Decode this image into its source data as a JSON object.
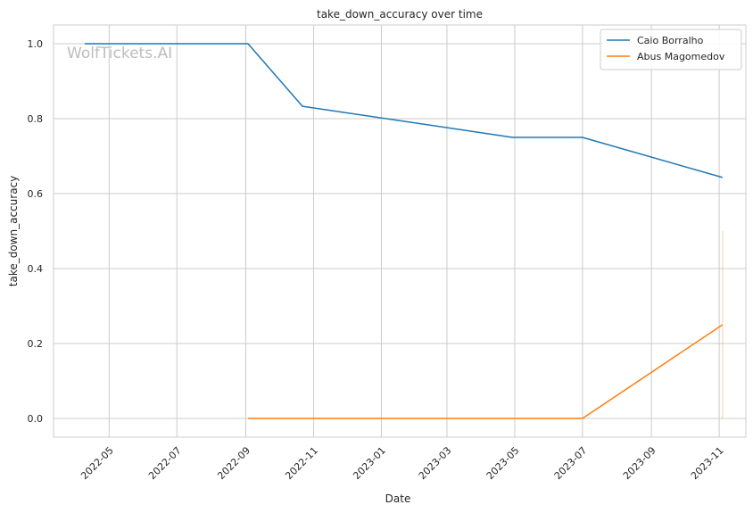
{
  "chart_data": {
    "type": "line",
    "title": "take_down_accuracy over time",
    "xlabel": "Date",
    "ylabel": "take_down_accuracy",
    "watermark": "WolfTickets.AI",
    "x_tick_labels": [
      "2022-05",
      "2022-07",
      "2022-09",
      "2022-11",
      "2023-01",
      "2023-03",
      "2023-05",
      "2023-07",
      "2023-09",
      "2023-11"
    ],
    "x_ticks": [
      "2022-05-01",
      "2022-07-01",
      "2022-09-01",
      "2022-11-01",
      "2023-01-01",
      "2023-03-01",
      "2023-05-01",
      "2023-07-01",
      "2023-09-01",
      "2023-11-01"
    ],
    "y_ticks": [
      0.0,
      0.2,
      0.4,
      0.6,
      0.8,
      1.0
    ],
    "y_tick_labels": [
      "0.0",
      "0.2",
      "0.4",
      "0.6",
      "0.8",
      "1.0"
    ],
    "xlim": [
      "2022-03-12",
      "2023-11-25"
    ],
    "ylim": [
      -0.05,
      1.05
    ],
    "grid": true,
    "legend_position": "top-right",
    "series": [
      {
        "name": "Caio Borralho",
        "color": "#1f77b4",
        "x": [
          "2022-04-09",
          "2022-09-03",
          "2022-10-22",
          "2023-04-29",
          "2023-07-01",
          "2023-11-04"
        ],
        "y": [
          1.0,
          1.0,
          0.833,
          0.75,
          0.75,
          0.643
        ]
      },
      {
        "name": "Abus Magomedov",
        "color": "#ff7f0e",
        "x": [
          "2022-09-03",
          "2023-07-01",
          "2023-11-04"
        ],
        "y": [
          0.0,
          0.0,
          0.25
        ],
        "error_band": {
          "x": "2023-11-04",
          "low": 0.0,
          "high": 0.5
        }
      }
    ]
  }
}
